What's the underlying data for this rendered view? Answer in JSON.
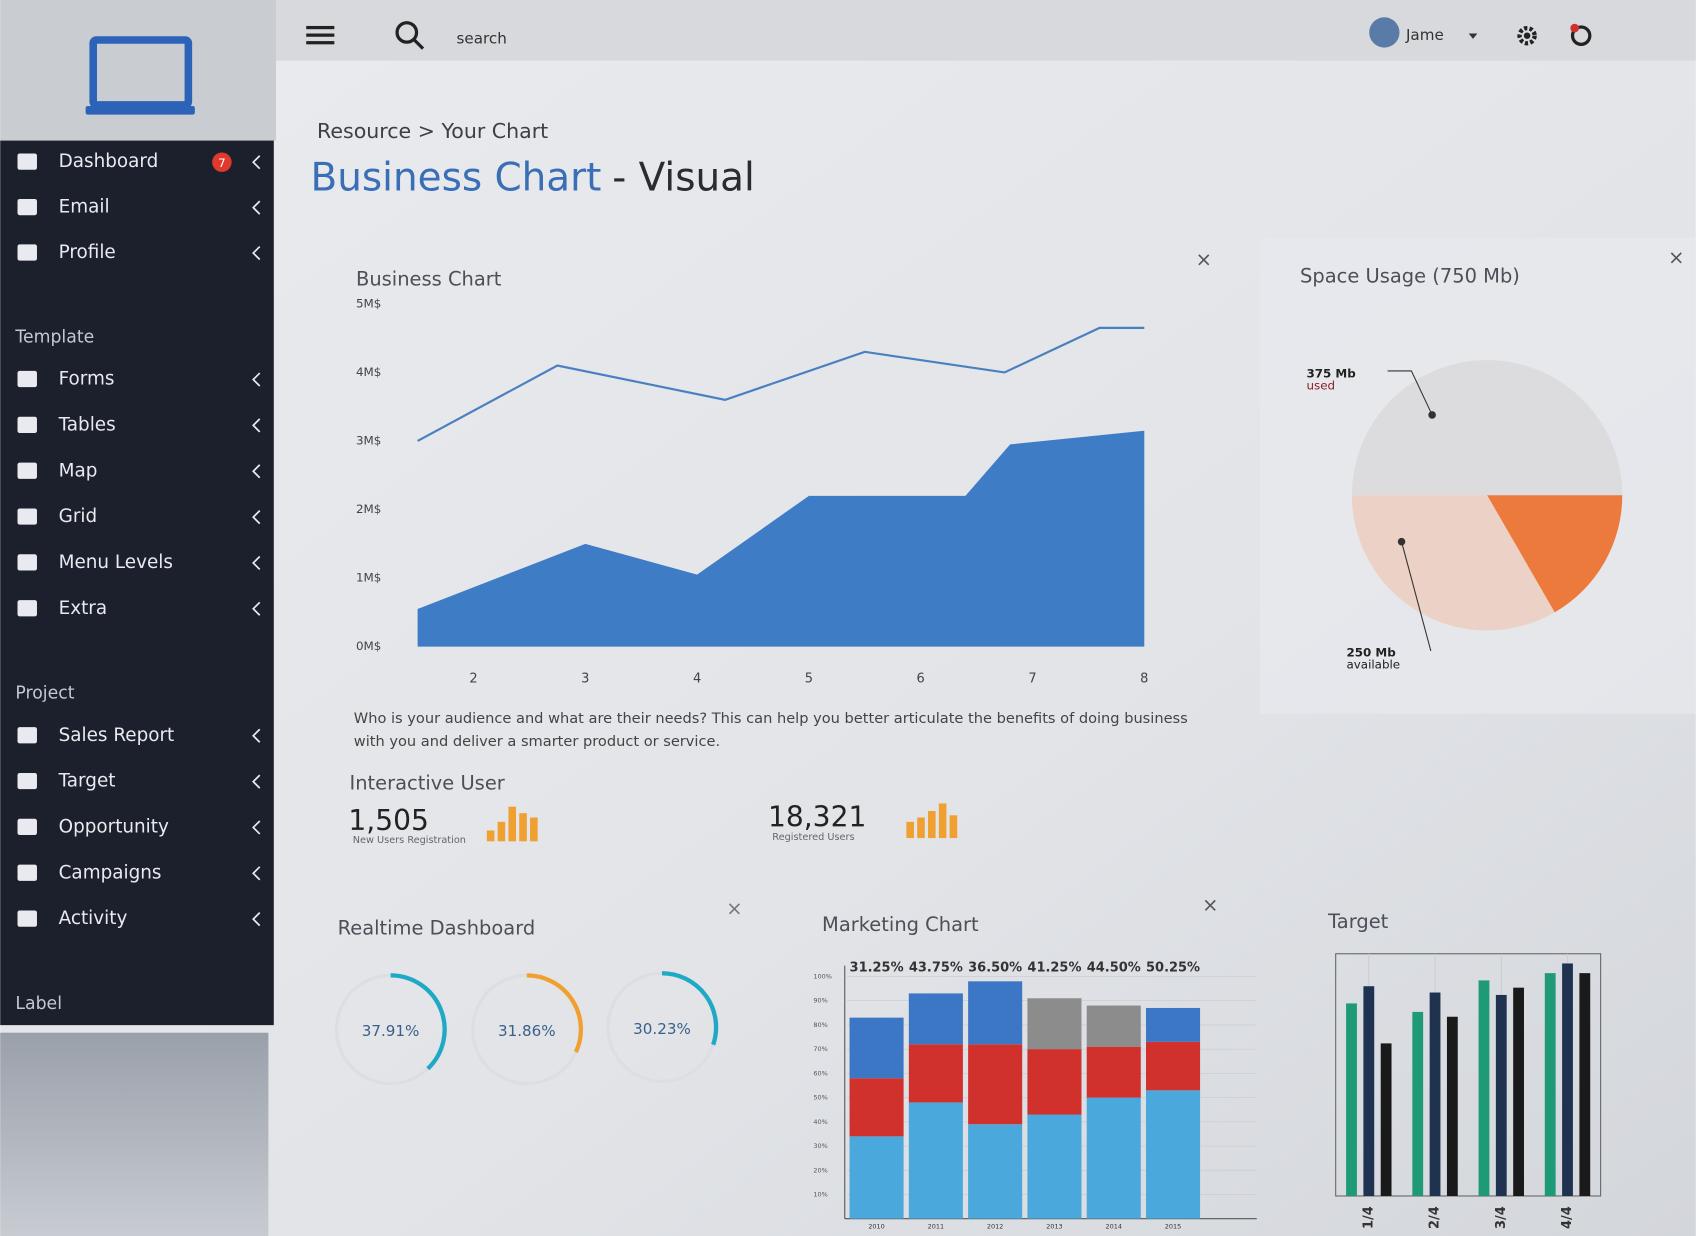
{
  "header": {
    "search_placeholder": "search",
    "user": "Jame"
  },
  "sidebar": {
    "menu": [
      {
        "label": "Dashboard",
        "badge": 7
      },
      {
        "label": "Email"
      },
      {
        "label": "Profile"
      }
    ],
    "sections": [
      {
        "title": "Template",
        "items": [
          "Forms",
          "Tables",
          "Map",
          "Grid",
          "Menu Levels",
          "Extra"
        ]
      },
      {
        "title": "Project",
        "items": [
          "Sales Report",
          "Target",
          "Opportunity",
          "Campaigns",
          "Activity"
        ]
      },
      {
        "title": "Label",
        "items": []
      }
    ]
  },
  "breadcrumb": "Resource > Your Chart",
  "page_title": {
    "highlight": "Business Chart",
    "rest": "- Visual"
  },
  "business_chart": {
    "type": "area",
    "title": "Business Chart",
    "xlim": [
      1.5,
      8
    ],
    "xticks": [
      2,
      3,
      4,
      5,
      6,
      7,
      8
    ],
    "ylim": [
      0,
      5
    ],
    "yticks": [
      {
        "value": 0,
        "label": "0M$"
      },
      {
        "value": 1,
        "label": "1M$"
      },
      {
        "value": 2,
        "label": "2M$"
      },
      {
        "value": 3,
        "label": "3M$"
      },
      {
        "value": 4,
        "label": "4M$"
      },
      {
        "value": 5,
        "label": "5M$"
      }
    ],
    "series": [
      {
        "kind": "line",
        "color": "#4a7fc0",
        "x": [
          1.5,
          2.75,
          4.25,
          5.5,
          6.75,
          7.6,
          8
        ],
        "values": [
          3.0,
          4.1,
          3.6,
          4.3,
          4.0,
          4.65,
          4.65
        ]
      },
      {
        "kind": "area",
        "color": "#3f7cc6",
        "x": [
          1.5,
          3,
          4,
          5,
          6.4,
          6.8,
          8
        ],
        "values": [
          0.55,
          1.5,
          1.05,
          2.2,
          2.2,
          2.95,
          3.15
        ]
      }
    ],
    "description": [
      "Who is your audience and what are their needs? This can help you better articulate the benefits of doing business",
      "with you and deliver a smarter product or service."
    ]
  },
  "space_usage": {
    "type": "pie",
    "title": "Space Usage (750 Mb)",
    "slices": [
      {
        "name": "used",
        "label": "375 Mb",
        "value": 375,
        "color": "#dcdcdf"
      },
      {
        "value": 125,
        "color": "#ec7a3c"
      },
      {
        "name": "available",
        "label": "250 Mb",
        "value": 250,
        "color": "#ecd2c6"
      }
    ]
  },
  "interactive_user": {
    "title": "Interactive User",
    "stats": [
      {
        "value": 1505,
        "label": "1,505",
        "caption": "New Users Registration"
      },
      {
        "value": 18321,
        "label": "18,321",
        "caption": "Registered Users"
      }
    ]
  },
  "realtime_dashboard": {
    "type": "gauge",
    "title": "Realtime Dashboard",
    "values": [
      37.91,
      31.86,
      30.23
    ],
    "value_labels": [
      "37.91%",
      "31.86%",
      "30.23%"
    ],
    "colors": [
      "#1fa9c4",
      "#f0a030",
      "#1fa9c4"
    ]
  },
  "marketing_chart": {
    "type": "stacked_bar",
    "title": "Marketing Chart",
    "categories": [
      "2010",
      "2011",
      "2012",
      "2013",
      "2014",
      "2015"
    ],
    "top_labels": [
      "31.25%",
      "43.75%",
      "36.50%",
      "41.25%",
      "44.50%",
      "50.25%"
    ],
    "ylim": [
      0,
      100
    ],
    "yticks": [
      {
        "value": 10,
        "label": "10%"
      },
      {
        "value": 20,
        "label": "20%"
      },
      {
        "value": 30,
        "label": "30%"
      },
      {
        "value": 40,
        "label": "40%"
      },
      {
        "value": 50,
        "label": "50%"
      },
      {
        "value": 60,
        "label": "60%"
      },
      {
        "value": 70,
        "label": "70%"
      },
      {
        "value": 80,
        "label": "80%"
      },
      {
        "value": 90,
        "label": "90%"
      },
      {
        "value": 100,
        "label": "100%"
      }
    ],
    "series": [
      {
        "colors": [
          "#4aa8dc",
          "#4aa8dc",
          "#4aa8dc",
          "#4aa8dc",
          "#4aa8dc",
          "#4aa8dc"
        ],
        "values": [
          34,
          48,
          39,
          43,
          50,
          53
        ]
      },
      {
        "colors": [
          "#d0312d",
          "#d0312d",
          "#d0312d",
          "#d0312d",
          "#d0312d",
          "#d0312d"
        ],
        "values": [
          24,
          24,
          33,
          27,
          21,
          20
        ]
      },
      {
        "colors": [
          "#3b77c4",
          "#3b77c4",
          "#3b77c4",
          "#8c8c8c",
          "#8c8c8c",
          "#3b77c4"
        ],
        "values": [
          25,
          21,
          26,
          21,
          17,
          14
        ]
      }
    ]
  },
  "target": {
    "type": "grouped_bar",
    "title": "Target",
    "categories": [
      "1/4",
      "2/4",
      "3/4",
      "4/4"
    ],
    "ylim": [
      0,
      100
    ],
    "series": [
      {
        "color": "#1e9a78",
        "values": [
          79.5,
          76,
          89,
          92
        ]
      },
      {
        "color": "#1f3350",
        "values": [
          86.6,
          84,
          83,
          96
        ]
      },
      {
        "color": "#1a1a1a",
        "values": [
          63,
          74,
          86,
          92
        ]
      }
    ]
  }
}
